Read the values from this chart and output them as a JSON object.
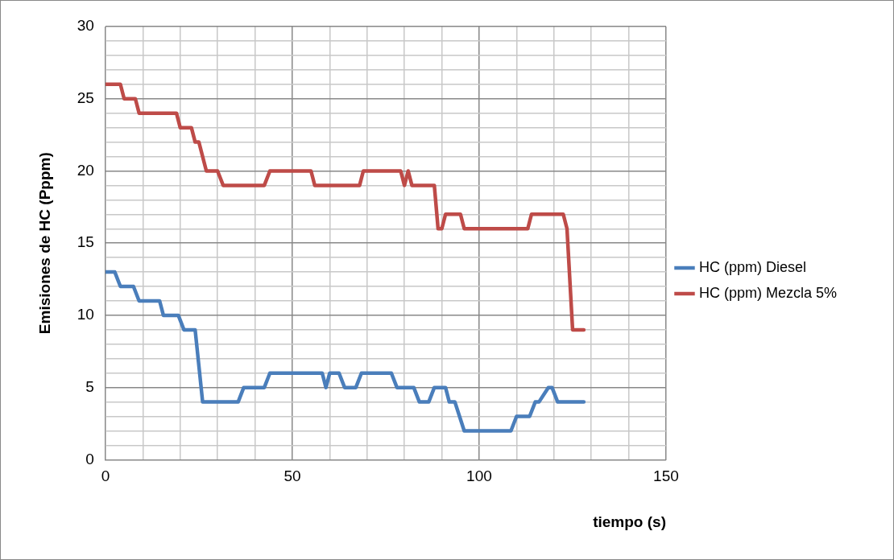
{
  "chart_data": {
    "type": "line",
    "xlabel": "tiempo (s)",
    "ylabel": "Emisiones de HC (Pppm)",
    "xlim": [
      0,
      150
    ],
    "xticks": [
      0,
      {
        "value": 10,
        "label": null
      },
      {
        "value": 20,
        "label": null
      },
      {
        "value": 30,
        "label": null
      },
      {
        "value": 40,
        "label": null
      },
      50,
      {
        "value": 60,
        "label": null
      },
      {
        "value": 70,
        "label": null
      },
      {
        "value": 80,
        "label": null
      },
      {
        "value": 90,
        "label": null
      },
      100,
      {
        "value": 110,
        "label": null
      },
      {
        "value": 120,
        "label": null
      },
      {
        "value": 130,
        "label": null
      },
      {
        "value": 140,
        "label": null
      },
      150
    ],
    "ylim": [
      0,
      30
    ],
    "yticks": [
      0,
      {
        "value": 1,
        "label": null
      },
      {
        "value": 2,
        "label": null
      },
      {
        "value": 3,
        "label": null
      },
      {
        "value": 4,
        "label": null
      },
      5,
      {
        "value": 6,
        "label": null
      },
      {
        "value": 7,
        "label": null
      },
      {
        "value": 8,
        "label": null
      },
      {
        "value": 9,
        "label": null
      },
      10,
      {
        "value": 11,
        "label": null
      },
      {
        "value": 12,
        "label": null
      },
      {
        "value": 13,
        "label": null
      },
      {
        "value": 14,
        "label": null
      },
      15,
      {
        "value": 16,
        "label": null
      },
      {
        "value": 17,
        "label": null
      },
      {
        "value": 18,
        "label": null
      },
      {
        "value": 19,
        "label": null
      },
      20,
      {
        "value": 21,
        "label": null
      },
      {
        "value": 22,
        "label": null
      },
      {
        "value": 23,
        "label": null
      },
      {
        "value": 24,
        "label": null
      },
      25,
      {
        "value": 26,
        "label": null
      },
      {
        "value": 27,
        "label": null
      },
      {
        "value": 28,
        "label": null
      },
      {
        "value": 29,
        "label": null
      },
      30
    ],
    "grid": true,
    "legend": "right",
    "marker": "none",
    "line_style": "solid",
    "series": [
      {
        "name": "HC (ppm) Diesel",
        "color": "#4a7ebb",
        "x": [
          0,
          2.5,
          4,
          7.5,
          9,
          14.5,
          15.5,
          19.5,
          21,
          24,
          26,
          35.5,
          37,
          42.5,
          44,
          58,
          59,
          60,
          62.5,
          64,
          67,
          68.5,
          76.5,
          78,
          82.5,
          84,
          86.5,
          88,
          91,
          92,
          93.5,
          96,
          108.5,
          110,
          113.5,
          115,
          116,
          118.5,
          119.5,
          121,
          128
        ],
        "values": [
          13,
          13,
          12,
          12,
          11,
          11,
          10,
          10,
          9,
          9,
          4,
          4,
          5,
          5,
          6,
          6,
          5,
          6,
          6,
          5,
          5,
          6,
          6,
          5,
          5,
          4,
          4,
          5,
          5,
          4,
          4,
          2,
          2,
          3,
          3,
          4,
          4,
          5,
          5,
          4,
          4
        ]
      },
      {
        "name": "HC (ppm) Mezcla 5%",
        "color": "#be4b48",
        "x": [
          0,
          4,
          5,
          8,
          9,
          19,
          20,
          23,
          24,
          25,
          27,
          30,
          31.5,
          42.5,
          44,
          55,
          56,
          68,
          69,
          79,
          80,
          81,
          82,
          88,
          89,
          90,
          91,
          95,
          96,
          113,
          114,
          122.5,
          123.5,
          125,
          128
        ],
        "values": [
          26,
          26,
          25,
          25,
          24,
          24,
          23,
          23,
          22,
          22,
          20,
          20,
          19,
          19,
          20,
          20,
          19,
          19,
          20,
          20,
          19,
          20,
          19,
          19,
          16,
          16,
          17,
          17,
          16,
          16,
          17,
          17,
          16,
          9,
          9
        ]
      }
    ]
  }
}
